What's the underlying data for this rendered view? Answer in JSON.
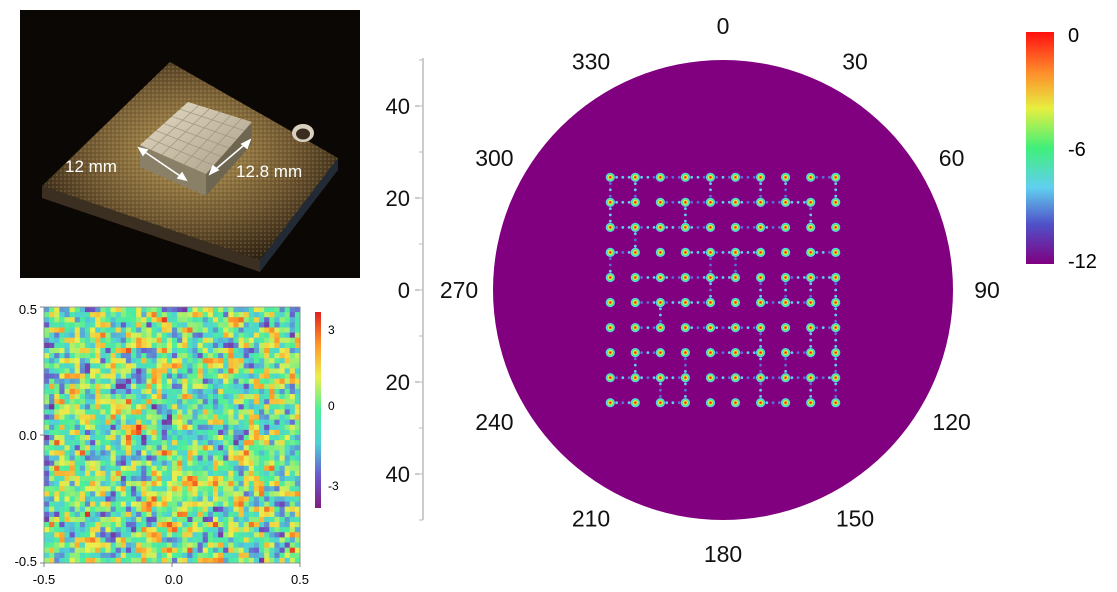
{
  "photo": {
    "dim_width_label": "12 mm",
    "dim_side_label": "12.8 mm"
  },
  "chart_data": [
    {
      "type": "heatmap",
      "description_free": true,
      "x_ticks": [
        "-0.5",
        "0.0",
        "0.5"
      ],
      "y_ticks": [
        "0.5",
        "0.0",
        "-0.5"
      ],
      "xlim": [
        -0.5,
        0.5
      ],
      "ylim": [
        -0.5,
        0.5
      ],
      "grid": 50,
      "colorbar": {
        "ticks": [
          "3",
          "0",
          "-3"
        ],
        "range": [
          -3.14,
          3.14
        ],
        "colors": [
          "#7f1f7f",
          "#6a5acd",
          "#50d0d8",
          "#4cef9a",
          "#ecef4c",
          "#ff9a2a",
          "#e02020"
        ]
      },
      "seed": 1729
    },
    {
      "type": "heatmap",
      "radial_ticks": [
        "40",
        "20",
        "0",
        "20",
        "40"
      ],
      "radial_range": [
        -50,
        50
      ],
      "angle_labels": [
        "0",
        "30",
        "60",
        "90",
        "120",
        "150",
        "180",
        "210",
        "240",
        "270",
        "300",
        "330"
      ],
      "angle_values": [
        0,
        30,
        60,
        90,
        120,
        150,
        180,
        210,
        240,
        270,
        300,
        330
      ],
      "background_color": "#800080",
      "beam_grid": {
        "rows": 10,
        "cols": 10,
        "u_min": -24.5,
        "u_max": 24.5
      },
      "colorbar": {
        "ticks": [
          "0",
          "-6",
          "-12"
        ],
        "range": [
          -12,
          0
        ],
        "colors": [
          "#800080",
          "#5050c8",
          "#60d0f0",
          "#40ef7a",
          "#e6ef40",
          "#ff8a2a",
          "#ff1010"
        ]
      }
    }
  ]
}
